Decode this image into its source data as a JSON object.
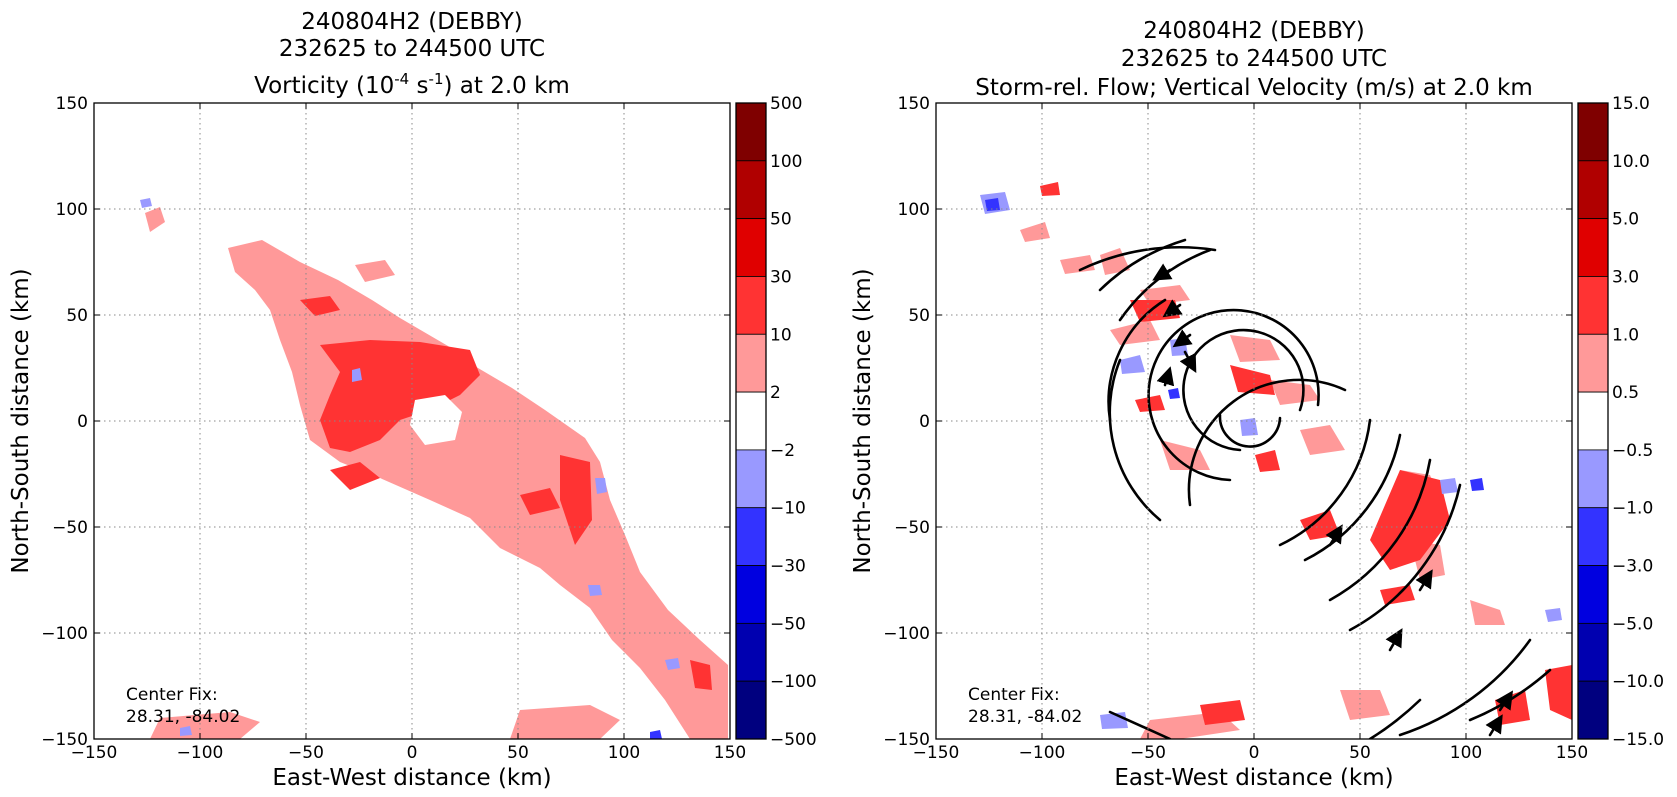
{
  "chart_data": [
    {
      "type": "heatmap",
      "title_line1": "240804H2 (DEBBY)",
      "title_line2": "232625 to 244500 UTC",
      "title_line3_pre": "Vorticity (10",
      "title_line3_sup1": "-4",
      "title_line3_mid": " s",
      "title_line3_sup2": "-1",
      "title_line3_post": ") at 2.0 km",
      "xlabel": "East-West distance (km)",
      "ylabel": "North-South distance (km)",
      "xlim": [
        -150,
        150
      ],
      "ylim": [
        -150,
        150
      ],
      "grid": true,
      "x_ticks": [
        "−150",
        "−100",
        "−50",
        "0",
        "50",
        "100",
        "150"
      ],
      "x_tick_values": [
        -150,
        -100,
        -50,
        0,
        50,
        100,
        150
      ],
      "y_ticks": [
        "−150",
        "−100",
        "−50",
        "0",
        "50",
        "100",
        "150"
      ],
      "y_tick_values": [
        -150,
        -100,
        -50,
        0,
        50,
        100,
        150
      ],
      "center_fix_label": "Center Fix:",
      "center_fix_value": "28.31, -84.02",
      "colorbar": {
        "labels": [
          "500",
          "100",
          "50",
          "30",
          "10",
          "2",
          "−2",
          "−10",
          "−30",
          "−50",
          "−100",
          "−500"
        ],
        "colors_top_to_bottom": [
          "#7f0000",
          "#b00000",
          "#e00000",
          "#ff3333",
          "#ff9999",
          "#ffffff",
          "#9999ff",
          "#3333ff",
          "#0000e0",
          "#0000b0",
          "#00007f"
        ]
      },
      "field_summary": "Band of positive vorticity oriented NW-SE from about (-125,100) to (150,-150); strongest values (10-30) near the center between -40 and 20 km; small negative (blue) patches scattered along the band edges."
    },
    {
      "type": "heatmap",
      "title_line1": "240804H2 (DEBBY)",
      "title_line2": "232625 to 244500 UTC",
      "title_line3": "Storm-rel. Flow; Vertical Velocity (m/s) at 2.0 km",
      "xlabel": "East-West distance (km)",
      "ylabel": "North-South distance (km)",
      "xlim": [
        -150,
        150
      ],
      "ylim": [
        -150,
        150
      ],
      "grid": true,
      "x_ticks": [
        "−150",
        "−100",
        "−50",
        "0",
        "50",
        "100",
        "150"
      ],
      "x_tick_values": [
        -150,
        -100,
        -50,
        0,
        50,
        100,
        150
      ],
      "y_ticks": [
        "−150",
        "−100",
        "−50",
        "0",
        "50",
        "100",
        "150"
      ],
      "y_tick_values": [
        -150,
        -100,
        -50,
        0,
        50,
        100,
        150
      ],
      "center_fix_label": "Center Fix:",
      "center_fix_value": "28.31, -84.02",
      "colorbar": {
        "labels": [
          "15.0",
          "10.0",
          "5.0",
          "3.0",
          "1.0",
          "0.5",
          "−0.5",
          "−1.0",
          "−3.0",
          "−5.0",
          "−10.0",
          "−15.0"
        ],
        "colors_top_to_bottom": [
          "#7f0000",
          "#b00000",
          "#e00000",
          "#ff3333",
          "#ff9999",
          "#ffffff",
          "#9999ff",
          "#3333ff",
          "#0000e0",
          "#0000b0",
          "#00007f"
        ]
      },
      "flow": "cyclonic (counter-clockwise) storm-relative streamlines spiraling around the center near (5,5) km",
      "field_summary": "Updraft/downdraft patches (mostly 0.5-3 m/s, red) along the NW-SE band, with scattered blue downdrafts; strongest updrafts SE of center near (80,-60)."
    }
  ]
}
